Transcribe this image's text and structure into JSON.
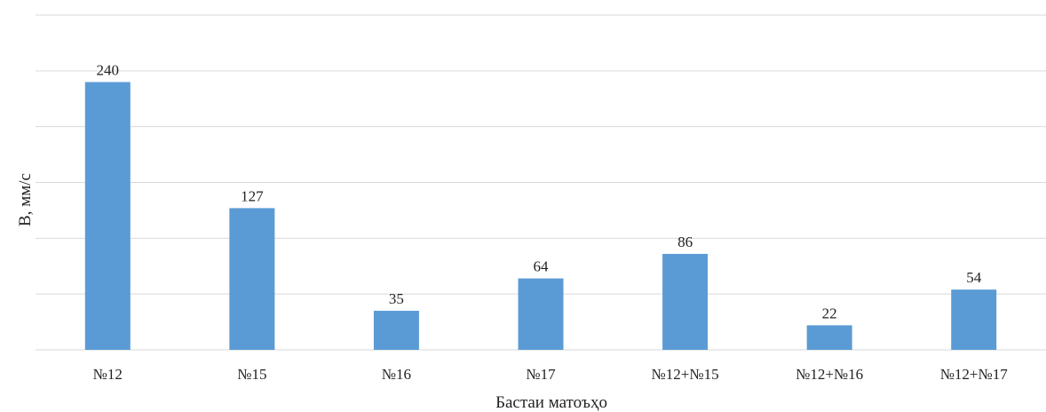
{
  "chart_data": {
    "type": "bar",
    "categories": [
      "№12",
      "№15",
      "№16",
      "№17",
      "№12+№15",
      "№12+№16",
      "№12+№17"
    ],
    "values": [
      240,
      127,
      35,
      64,
      86,
      22,
      54
    ],
    "data_labels": [
      "240",
      "127",
      "35",
      "64",
      "86",
      "22",
      "54"
    ],
    "xlabel": "Бастаи матоъҳо",
    "ylabel": "В, мм/с",
    "ylim": [
      0,
      300
    ],
    "gridlines": [
      0,
      50,
      100,
      150,
      200,
      250,
      300
    ],
    "grid": true,
    "bar_color": "#5B9BD5",
    "grid_color": "#d9d9d9"
  }
}
